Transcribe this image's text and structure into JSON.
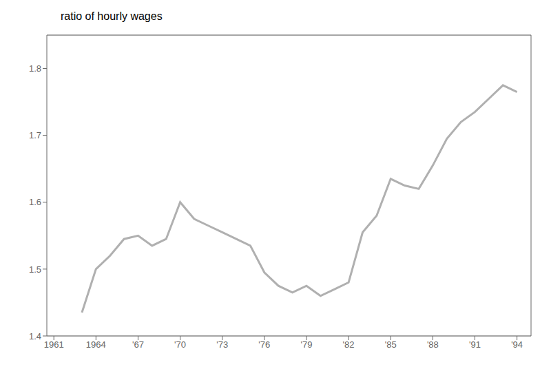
{
  "chart_data": {
    "type": "line",
    "title": "ratio of hourly wages",
    "x": [
      1963,
      1964,
      1965,
      1966,
      1967,
      1968,
      1969,
      1970,
      1971,
      1972,
      1973,
      1974,
      1975,
      1976,
      1977,
      1978,
      1979,
      1980,
      1981,
      1982,
      1983,
      1984,
      1985,
      1986,
      1987,
      1988,
      1989,
      1990,
      1991,
      1992,
      1993,
      1994
    ],
    "values": [
      1.435,
      1.5,
      1.52,
      1.545,
      1.55,
      1.535,
      1.545,
      1.6,
      1.575,
      1.565,
      1.555,
      1.545,
      1.535,
      1.495,
      1.475,
      1.465,
      1.475,
      1.46,
      1.47,
      1.48,
      1.555,
      1.58,
      1.635,
      1.625,
      1.62,
      1.655,
      1.695,
      1.72,
      1.735,
      1.755,
      1.775,
      1.765
    ],
    "color": "#b0b0b0",
    "xlim": [
      1960.5,
      1995.0
    ],
    "ylim": [
      1.4,
      1.85
    ],
    "xticks": [
      1961,
      1964,
      {
        "value": 1967,
        "label": "'67"
      },
      {
        "value": 1970,
        "label": "'70"
      },
      {
        "value": 1973,
        "label": "'73"
      },
      {
        "value": 1976,
        "label": "'76"
      },
      {
        "value": 1979,
        "label": "'79"
      },
      {
        "value": 1982,
        "label": "'82"
      },
      {
        "value": 1985,
        "label": "'85"
      },
      {
        "value": 1988,
        "label": "'88"
      },
      {
        "value": 1991,
        "label": "'91"
      },
      {
        "value": 1994,
        "label": "'94"
      }
    ],
    "yticks": [
      1.4,
      1.5,
      1.6,
      1.7,
      1.8
    ],
    "grid": true
  }
}
